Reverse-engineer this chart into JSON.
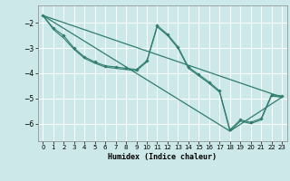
{
  "xlabel": "Humidex (Indice chaleur)",
  "bg_color": "#cce8e8",
  "grid_color": "#ffffff",
  "line_color": "#2e7d6e",
  "xlim": [
    -0.5,
    23.5
  ],
  "ylim": [
    -6.7,
    -1.3
  ],
  "yticks": [
    -6,
    -5,
    -4,
    -3,
    -2
  ],
  "xticks": [
    0,
    1,
    2,
    3,
    4,
    5,
    6,
    7,
    8,
    9,
    10,
    11,
    12,
    13,
    14,
    15,
    16,
    17,
    18,
    19,
    20,
    21,
    22,
    23
  ],
  "series1_x": [
    0,
    1,
    2,
    3,
    4,
    5,
    6,
    7,
    8,
    9,
    10,
    11,
    12,
    13,
    14,
    15,
    16,
    17,
    18,
    19,
    20,
    21,
    22,
    23
  ],
  "series1_y": [
    -1.7,
    -2.2,
    -2.5,
    -3.0,
    -3.35,
    -3.55,
    -3.7,
    -3.75,
    -3.8,
    -3.85,
    -3.5,
    -2.1,
    -2.45,
    -2.95,
    -3.75,
    -4.05,
    -4.35,
    -4.7,
    -6.25,
    -5.85,
    -5.95,
    -5.8,
    -4.85,
    -4.9
  ],
  "series2_x": [
    0,
    1,
    2,
    3,
    4,
    5,
    6,
    7,
    8,
    9,
    10,
    11,
    12,
    13,
    14,
    15,
    16,
    17,
    18,
    19,
    20,
    21,
    22,
    23
  ],
  "series2_y": [
    -1.7,
    -2.25,
    -2.6,
    -3.05,
    -3.4,
    -3.6,
    -3.75,
    -3.8,
    -3.85,
    -3.9,
    -3.55,
    -2.15,
    -2.5,
    -3.0,
    -3.8,
    -4.1,
    -4.4,
    -4.75,
    -6.3,
    -5.9,
    -6.0,
    -5.85,
    -4.9,
    -4.95
  ],
  "series3_x": [
    0,
    23
  ],
  "series3_y": [
    -1.7,
    -4.95
  ],
  "series4_x": [
    0,
    18,
    23
  ],
  "series4_y": [
    -1.7,
    -6.3,
    -4.95
  ]
}
